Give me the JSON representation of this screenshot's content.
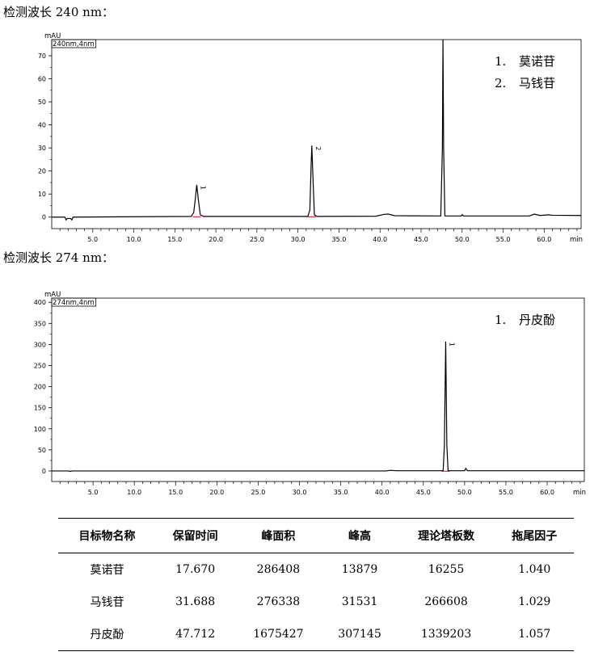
{
  "chart_data": [
    {
      "type": "line",
      "section_title": "检测波长 240 nm：",
      "y_unit": "mAU",
      "trace_label": "240nm,4nm",
      "x_unit": "min",
      "xlim": [
        0,
        64.5
      ],
      "ylim": [
        -5,
        77
      ],
      "x_ticks": [
        "5.0",
        "10.0",
        "15.0",
        "20.0",
        "25.0",
        "30.0",
        "35.0",
        "40.0",
        "45.0",
        "50.0",
        "55.0",
        "60.0"
      ],
      "x_tick_values": [
        5,
        10,
        15,
        20,
        25,
        30,
        35,
        40,
        45,
        50,
        55,
        60
      ],
      "y_ticks": [
        "0",
        "10",
        "20",
        "30",
        "40",
        "50",
        "60",
        "70"
      ],
      "y_tick_values": [
        0,
        10,
        20,
        30,
        40,
        50,
        60,
        70
      ],
      "legend": [
        {
          "num": "1.",
          "name": "莫诺苷"
        },
        {
          "num": "2.",
          "name": "马钱苷"
        }
      ],
      "series": [
        {
          "points": [
            [
              0,
              0
            ],
            [
              1.6,
              0
            ],
            [
              1.75,
              -1.2
            ],
            [
              1.9,
              -0.6
            ],
            [
              2.3,
              -0.6
            ],
            [
              2.45,
              -1.2
            ],
            [
              2.6,
              0
            ],
            [
              17.0,
              0.3
            ],
            [
              17.3,
              2
            ],
            [
              17.5,
              8
            ],
            [
              17.67,
              14
            ],
            [
              17.85,
              8
            ],
            [
              18.1,
              1
            ],
            [
              18.5,
              0.3
            ],
            [
              31.2,
              0.3
            ],
            [
              31.45,
              3
            ],
            [
              31.6,
              22
            ],
            [
              31.69,
              31
            ],
            [
              31.8,
              20
            ],
            [
              32.0,
              1
            ],
            [
              32.3,
              0.3
            ],
            [
              39.5,
              0.4
            ],
            [
              40.5,
              1.2
            ],
            [
              41.0,
              1.3
            ],
            [
              41.8,
              0.6
            ],
            [
              47.4,
              0.5
            ],
            [
              47.6,
              30
            ],
            [
              47.67,
              77
            ],
            [
              47.75,
              30
            ],
            [
              47.9,
              0.5
            ],
            [
              49.9,
              0.5
            ],
            [
              50.0,
              1.1
            ],
            [
              50.15,
              0.5
            ],
            [
              58.2,
              0.5
            ],
            [
              58.8,
              1.3
            ],
            [
              59.5,
              0.7
            ],
            [
              60.5,
              1.0
            ],
            [
              61.0,
              0.8
            ],
            [
              64.5,
              0.7
            ]
          ]
        }
      ],
      "peaks": [
        {
          "label": "1",
          "x": 17.67,
          "y": 14
        },
        {
          "label": "2",
          "x": 31.69,
          "y": 31
        }
      ]
    },
    {
      "type": "line",
      "section_title": "检测波长 274 nm：",
      "y_unit": "mAU",
      "trace_label": "274nm,4nm",
      "x_unit": "min",
      "xlim": [
        0,
        64.5
      ],
      "ylim": [
        -25,
        410
      ],
      "x_ticks": [
        "5.0",
        "10.0",
        "15.0",
        "20.0",
        "25.0",
        "30.0",
        "35.0",
        "40.0",
        "45.0",
        "50.0",
        "55.0",
        "60.0"
      ],
      "x_tick_values": [
        5,
        10,
        15,
        20,
        25,
        30,
        35,
        40,
        45,
        50,
        55,
        60
      ],
      "y_ticks": [
        "0",
        "50",
        "100",
        "150",
        "200",
        "250",
        "300",
        "350",
        "400"
      ],
      "y_tick_values": [
        0,
        50,
        100,
        150,
        200,
        250,
        300,
        350,
        400
      ],
      "legend": [
        {
          "num": "1.",
          "name": "丹皮酚"
        }
      ],
      "series": [
        {
          "points": [
            [
              0,
              0
            ],
            [
              2.0,
              0
            ],
            [
              2.2,
              -1
            ],
            [
              2.5,
              0
            ],
            [
              40.5,
              0
            ],
            [
              41.0,
              1.5
            ],
            [
              41.8,
              0.5
            ],
            [
              47.4,
              0.5
            ],
            [
              47.55,
              60
            ],
            [
              47.71,
              307
            ],
            [
              47.85,
              60
            ],
            [
              48.0,
              0.5
            ],
            [
              50.0,
              0.5
            ],
            [
              50.15,
              6
            ],
            [
              50.35,
              0.5
            ],
            [
              64.5,
              0.5
            ]
          ]
        }
      ],
      "peaks": [
        {
          "label": "1",
          "x": 47.71,
          "y": 307
        }
      ]
    }
  ],
  "results_table": {
    "headers": [
      "目标物名称",
      "保留时间",
      "峰面积",
      "峰高",
      "理论塔板数",
      "拖尾因子"
    ],
    "rows": [
      [
        "莫诺苷",
        "17.670",
        "286408",
        "13879",
        "16255",
        "1.040"
      ],
      [
        "马钱苷",
        "31.688",
        "276338",
        "31531",
        "266608",
        "1.029"
      ],
      [
        "丹皮酚",
        "47.712",
        "1675427",
        "307145",
        "1339203",
        "1.057"
      ]
    ]
  }
}
